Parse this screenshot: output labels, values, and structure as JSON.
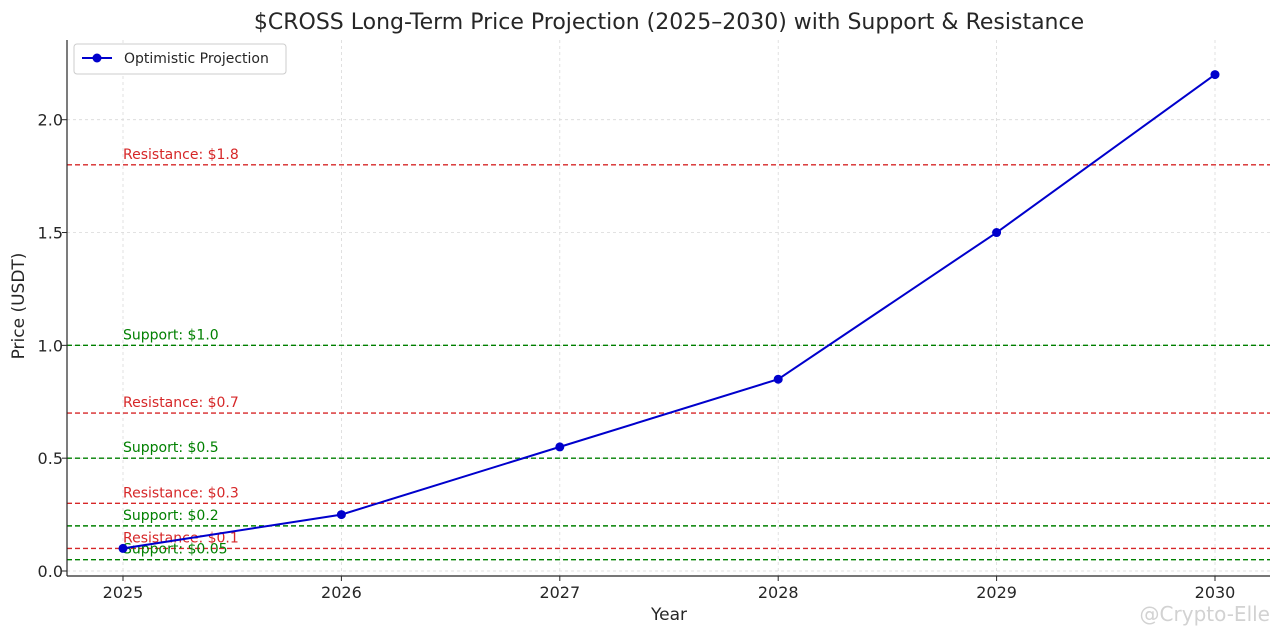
{
  "chart_data": {
    "type": "line",
    "title": "$CROSS Long-Term Price Projection (2025–2030) with Support & Resistance",
    "xlabel": "Year",
    "ylabel": "Price (USDT)",
    "x": [
      "2025",
      "2026",
      "2027",
      "2028",
      "2029",
      "2030"
    ],
    "series": [
      {
        "name": "Optimistic Projection",
        "values": [
          0.1,
          0.25,
          0.55,
          0.85,
          1.5,
          2.2
        ]
      }
    ],
    "yticks": [
      "0.0",
      "0.5",
      "1.0",
      "1.5",
      "2.0"
    ],
    "ylim": [
      0,
      2.3
    ],
    "grid": true,
    "legend_position": "top-left",
    "support_levels": [
      {
        "label": "Support: $0.05",
        "value": 0.05
      },
      {
        "label": "Support: $0.2",
        "value": 0.2
      },
      {
        "label": "Support: $0.5",
        "value": 0.5
      },
      {
        "label": "Support: $1.0",
        "value": 1.0
      }
    ],
    "resistance_levels": [
      {
        "label": "Resistance: $0.1",
        "value": 0.1
      },
      {
        "label": "Resistance: $0.3",
        "value": 0.3
      },
      {
        "label": "Resistance: $0.7",
        "value": 0.7
      },
      {
        "label": "Resistance: $1.8",
        "value": 1.8
      }
    ],
    "colors": {
      "line": "#0000cc",
      "support": "#008000",
      "resistance": "#d62728"
    }
  },
  "watermark": "@Crypto-Elle"
}
